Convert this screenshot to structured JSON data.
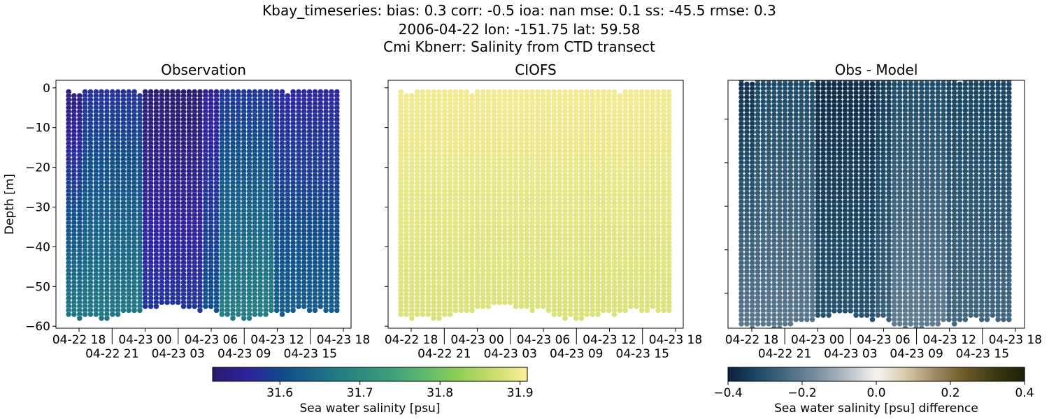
{
  "figure": {
    "title_lines": [
      "Kbay_timeseries: bias: 0.3  corr: -0.5  ioa: nan  mse: 0.1  ss: -45.5  rmse: 0.3",
      "2006-04-22 lon: -151.75 lat: 59.58",
      "Cmi Kbnerr: Salinity from CTD transect"
    ]
  },
  "chart_data": [
    {
      "type": "scatter",
      "title": "Observation",
      "ylabel": "Depth [m]",
      "xlabel": "",
      "variable": "observation",
      "ylim": [
        -60.5,
        1.9
      ],
      "xlim": [
        "2006-04-22T15:54",
        "2006-04-23T18:42"
      ],
      "yticks": [
        0,
        -10,
        -20,
        -30,
        -40,
        -50,
        -60
      ],
      "ytick_labels": [
        "0",
        "−10",
        "−20",
        "−30",
        "−40",
        "−50",
        "−60"
      ],
      "xticks": [
        "2006-04-22T18:00",
        "2006-04-22T21:00",
        "2006-04-23T00:00",
        "2006-04-23T03:00",
        "2006-04-23T06:00",
        "2006-04-23T09:00",
        "2006-04-23T12:00",
        "2006-04-23T15:00",
        "2006-04-23T18:00"
      ],
      "xtick_labels": [
        "04-22 18",
        "04-22 21",
        "04-23 00",
        "04-23 03",
        "04-23 06",
        "04-23 09",
        "04-23 12",
        "04-23 15",
        "04-23 18"
      ],
      "colormap": "haline",
      "clim": [
        31.516,
        31.909
      ]
    },
    {
      "type": "scatter",
      "title": "CIOFS",
      "variable": "model",
      "ylim": [
        -60.5,
        1.9
      ],
      "xlim": [
        "2006-04-22T15:54",
        "2006-04-23T18:42"
      ],
      "yticks": [
        0,
        -10,
        -20,
        -30,
        -40,
        -50,
        -60
      ],
      "xticks": [
        "2006-04-22T18:00",
        "2006-04-22T21:00",
        "2006-04-23T00:00",
        "2006-04-23T03:00",
        "2006-04-23T06:00",
        "2006-04-23T09:00",
        "2006-04-23T12:00",
        "2006-04-23T15:00",
        "2006-04-23T18:00"
      ],
      "xtick_labels": [
        "04-22 18",
        "04-22 21",
        "04-23 00",
        "04-23 03",
        "04-23 06",
        "04-23 09",
        "04-23 12",
        "04-23 15",
        "04-23 18"
      ],
      "colormap": "haline",
      "clim": [
        31.516,
        31.909
      ]
    },
    {
      "type": "scatter",
      "title": "Obs - Model",
      "variable": "difference",
      "ylim": [
        -58.0,
        -1.1
      ],
      "xlim": [
        "2006-04-22T15:50",
        "2006-04-23T18:50"
      ],
      "yticks": [
        -10,
        -20,
        -30,
        -40,
        -50
      ],
      "xticks": [
        "2006-04-22T18:00",
        "2006-04-22T21:00",
        "2006-04-23T00:00",
        "2006-04-23T03:00",
        "2006-04-23T06:00",
        "2006-04-23T09:00",
        "2006-04-23T12:00",
        "2006-04-23T15:00",
        "2006-04-23T18:00"
      ],
      "xtick_labels": [
        "04-22 18",
        "04-22 21",
        "04-23 00",
        "04-23 03",
        "04-23 06",
        "04-23 09",
        "04-23 12",
        "04-23 15",
        "04-23 18"
      ],
      "colormap": "diff",
      "clim": [
        -0.4,
        0.4
      ]
    }
  ],
  "profiles": {
    "count": 50,
    "first_time": "2006-04-22T17:03",
    "last_time": "2006-04-23T17:25",
    "top_depth_m": [
      1,
      2,
      2,
      1,
      1,
      1,
      1,
      1,
      1,
      1,
      1,
      1,
      1,
      2,
      1,
      1,
      1,
      1,
      1,
      1,
      1,
      1,
      1,
      1,
      1,
      1,
      1,
      1,
      1,
      1,
      1,
      1,
      1,
      1,
      1,
      1,
      1,
      1,
      1,
      1,
      2,
      1,
      1,
      1,
      1,
      1,
      1,
      1,
      1,
      1
    ],
    "bottom_depth_m": [
      57,
      57,
      58,
      57,
      57,
      57,
      58,
      58,
      57,
      57,
      56,
      56,
      56,
      56,
      55,
      55,
      55,
      54,
      54,
      54,
      54,
      55,
      55,
      55,
      56,
      55,
      55,
      56,
      57,
      57,
      58,
      57,
      58,
      58,
      57,
      57,
      57,
      56,
      56,
      57,
      56,
      56,
      55,
      55,
      56,
      56,
      55,
      56,
      56,
      56
    ],
    "obs_surface_psu": [
      31.53,
      31.53,
      31.53,
      31.575,
      31.575,
      31.575,
      31.575,
      31.575,
      31.575,
      31.575,
      31.575,
      31.575,
      31.575,
      31.575,
      31.52,
      31.52,
      31.52,
      31.52,
      31.52,
      31.52,
      31.52,
      31.52,
      31.52,
      31.52,
      31.52,
      31.55,
      31.55,
      31.55,
      31.58,
      31.58,
      31.58,
      31.58,
      31.58,
      31.58,
      31.58,
      31.58,
      31.58,
      31.58,
      31.565,
      31.565,
      31.565,
      31.565,
      31.565,
      31.565,
      31.565,
      31.565,
      31.565,
      31.565,
      31.565,
      31.565
    ],
    "obs_bottom_psu": [
      31.665,
      31.665,
      31.665,
      31.665,
      31.665,
      31.665,
      31.665,
      31.665,
      31.665,
      31.665,
      31.665,
      31.665,
      31.665,
      31.665,
      31.58,
      31.58,
      31.58,
      31.58,
      31.58,
      31.58,
      31.58,
      31.58,
      31.58,
      31.58,
      31.58,
      31.61,
      31.61,
      31.61,
      31.675,
      31.675,
      31.675,
      31.675,
      31.675,
      31.675,
      31.675,
      31.675,
      31.675,
      31.675,
      31.625,
      31.625,
      31.625,
      31.625,
      31.625,
      31.625,
      31.625,
      31.625,
      31.625,
      31.625,
      31.625,
      31.625
    ],
    "model_surface_psu": 31.9,
    "model_bottom_psu": 31.88
  },
  "colorbars": [
    {
      "label": "Sea water salinity [psu]",
      "range": [
        31.516,
        31.909
      ],
      "ticks": [
        31.6,
        31.7,
        31.8,
        31.9
      ],
      "tick_labels": [
        "31.6",
        "31.7",
        "31.8",
        "31.9"
      ],
      "colormap": "haline"
    },
    {
      "label": "Sea water salinity [psu] difference",
      "range": [
        -0.4,
        0.4
      ],
      "ticks": [
        -0.4,
        -0.2,
        0.0,
        0.2,
        0.4
      ],
      "tick_labels": [
        "−0.4",
        "−0.2",
        "0.0",
        "0.2",
        "0.4"
      ],
      "colormap": "diff"
    }
  ],
  "colormaps": {
    "haline": [
      "#2a1a6c",
      "#2e22a0",
      "#0f4c8c",
      "#1a6b88",
      "#2b8580",
      "#3c9c7c",
      "#5ab870",
      "#8ecf55",
      "#c8dc6a",
      "#fdee9a"
    ],
    "diff": [
      "#0a1f3d",
      "#1b4a68",
      "#4a6a84",
      "#7a8fa0",
      "#b4bec8",
      "#f6f3f0",
      "#d7c9ad",
      "#9e8a60",
      "#6b5a28",
      "#3d3812",
      "#1f2009"
    ]
  }
}
